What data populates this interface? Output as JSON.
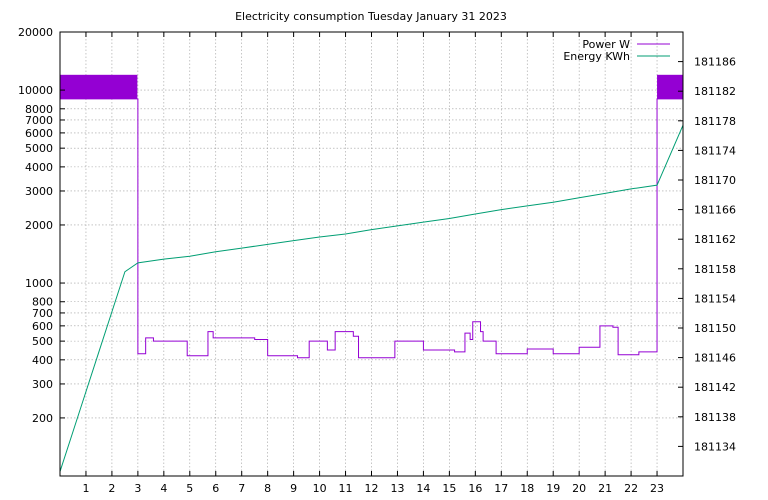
{
  "chart_data": {
    "type": "line",
    "title": "Electricity consumption Tuesday January 31 2023",
    "xlabel": "",
    "ylabel": "",
    "y2label": "",
    "grid": true,
    "legend": "top-right",
    "x_ticks": [
      1,
      2,
      3,
      4,
      5,
      6,
      7,
      8,
      9,
      10,
      11,
      12,
      13,
      14,
      15,
      16,
      17,
      18,
      19,
      20,
      21,
      22,
      23
    ],
    "xlim": [
      0,
      24
    ],
    "y_scale": "log",
    "ylim": [
      100,
      20000
    ],
    "y_ticks": [
      {
        "v": 200,
        "label": "200"
      },
      {
        "v": 300,
        "label": "300"
      },
      {
        "v": 400,
        "label": "400"
      },
      {
        "v": 500,
        "label": "500"
      },
      {
        "v": 600,
        "label": "600"
      },
      {
        "v": 700,
        "label": "700"
      },
      {
        "v": 800,
        "label": "800"
      },
      {
        "v": 1000,
        "label": "1000"
      },
      {
        "v": 2000,
        "label": "2000"
      },
      {
        "v": 3000,
        "label": "3000"
      },
      {
        "v": 4000,
        "label": "4000"
      },
      {
        "v": 5000,
        "label": "5000"
      },
      {
        "v": 6000,
        "label": "6000"
      },
      {
        "v": 7000,
        "label": "7000"
      },
      {
        "v": 8000,
        "label": "8000"
      },
      {
        "v": 10000,
        "label": "10000"
      },
      {
        "v": 20000,
        "label": "20000"
      }
    ],
    "y2lim": [
      181130,
      181190
    ],
    "y2_ticks": [
      181134,
      181138,
      181142,
      181146,
      181150,
      181154,
      181158,
      181162,
      181166,
      181170,
      181174,
      181178,
      181182,
      181186
    ],
    "series": [
      {
        "name": "Power W",
        "axis": "y",
        "color": "#9400d3",
        "step": true,
        "x": [
          0,
          0.5,
          1,
          1.5,
          2,
          2.5,
          2.98,
          3.0,
          3.3,
          3.6,
          4.0,
          4.5,
          4.9,
          5.7,
          5.9,
          6.5,
          7.0,
          7.5,
          8.0,
          8.5,
          9.0,
          9.15,
          9.6,
          10.0,
          10.3,
          10.6,
          11.0,
          11.3,
          11.5,
          12.0,
          12.8,
          12.9,
          13.5,
          14.0,
          14.5,
          15.0,
          15.2,
          15.6,
          15.8,
          15.9,
          16.2,
          16.3,
          16.5,
          16.8,
          17.0,
          17.5,
          18.0,
          18.5,
          19.0,
          19.5,
          20.0,
          20.5,
          20.8,
          21.3,
          21.5,
          21.8,
          22.0,
          22.3,
          22.5,
          22.98,
          23.0,
          23.5,
          24.0
        ],
        "values": [
          9000,
          9000,
          9000,
          9000,
          9000,
          9000,
          9000,
          430,
          520,
          500,
          500,
          500,
          420,
          560,
          520,
          520,
          520,
          510,
          420,
          420,
          420,
          410,
          500,
          500,
          450,
          560,
          560,
          530,
          410,
          410,
          410,
          500,
          500,
          450,
          450,
          450,
          440,
          550,
          510,
          630,
          560,
          500,
          500,
          430,
          430,
          430,
          455,
          455,
          430,
          430,
          465,
          465,
          600,
          590,
          425,
          425,
          425,
          440,
          440,
          440,
          9000,
          9000,
          9000
        ]
      },
      {
        "name": "Energy KWh",
        "axis": "y2",
        "color": "#009e73",
        "step": false,
        "x": [
          0,
          0.5,
          1,
          1.5,
          2,
          2.5,
          3.0,
          4.0,
          5.0,
          6.0,
          7.0,
          8.0,
          9.0,
          10.0,
          11.0,
          12.0,
          13.0,
          14.0,
          15.0,
          16.0,
          17.0,
          18.0,
          19.0,
          20.0,
          21.0,
          22.0,
          23.0,
          24.0
        ],
        "values": [
          181130.6,
          181136.0,
          181141.4,
          181146.8,
          181152.2,
          181157.6,
          181158.8,
          181159.3,
          181159.7,
          181160.3,
          181160.8,
          181161.3,
          181161.8,
          181162.3,
          181162.7,
          181163.3,
          181163.8,
          181164.3,
          181164.8,
          181165.4,
          181166.0,
          181166.5,
          181167.0,
          181167.6,
          181168.2,
          181168.8,
          181169.3,
          181177.4
        ]
      }
    ]
  }
}
